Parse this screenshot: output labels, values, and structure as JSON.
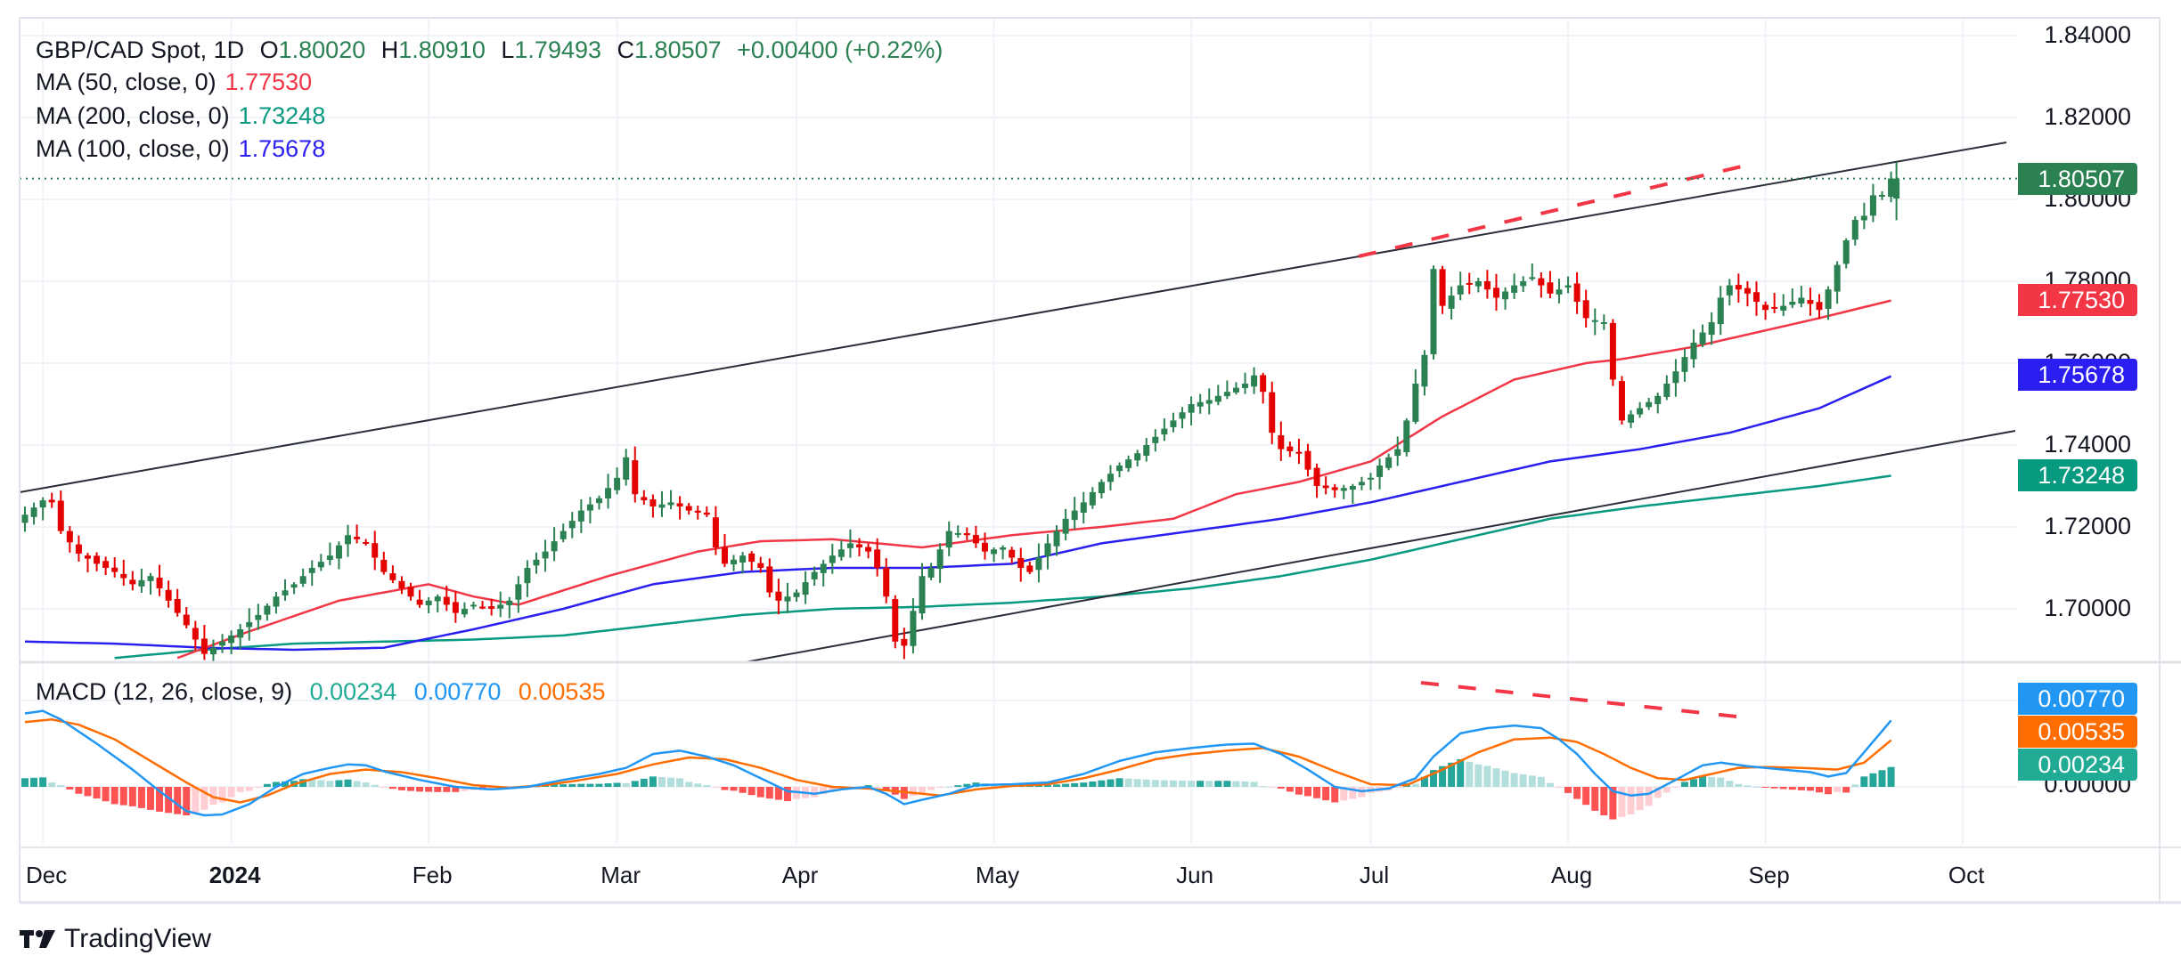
{
  "header": {
    "symbol": "GBP/CAD Spot, 1D",
    "o_label": "O",
    "o_value": "1.80020",
    "h_label": "H",
    "h_value": "1.80910",
    "l_label": "L",
    "l_value": "1.79493",
    "c_label": "C",
    "c_value": "1.80507",
    "change": "+0.00400 (+0.22%)"
  },
  "indicators": [
    {
      "label": "MA (50, close, 0)",
      "value": "1.77530",
      "color": "#f23645"
    },
    {
      "label": "MA (200, close, 0)",
      "value": "1.73248",
      "color": "#089981"
    },
    {
      "label": "MA (100, close, 0)",
      "value": "1.75678",
      "color": "#2a1ff0"
    }
  ],
  "macd_legend": {
    "label": "MACD (12, 26, close, 9)",
    "hist": "0.00234",
    "macd": "0.00770",
    "signal": "0.00535"
  },
  "price_tags": {
    "last": "1.80507",
    "ma50": "1.77530",
    "ma100": "1.75678",
    "ma200": "1.73248",
    "macd": "0.00770",
    "signal": "0.00535",
    "hist": "0.00234"
  },
  "colors": {
    "up": "#2b8152",
    "down": "#e50000",
    "ma50": "#f23645",
    "ma100": "#2a1ff0",
    "ma200": "#089981",
    "macd": "#2196f3",
    "signal": "#ff6d00",
    "hist_up_strong": "#26a69a",
    "hist_up_weak": "#b2dfdb",
    "hist_down_strong": "#ff5252",
    "hist_down_weak": "#ffcdd2",
    "last_tag": "#2b8152",
    "ma50_tag": "#f23645",
    "ma100_tag": "#2a1ff0",
    "ma200_tag": "#089981",
    "macd_tag": "#2196f3",
    "signal_tag": "#ff6d00",
    "hist_tag": "#22ab94"
  },
  "branding": {
    "name": "TradingView"
  },
  "chart_data": {
    "type": "candlestick",
    "title": "GBP/CAD Spot, 1D",
    "price_axis": {
      "ticks": [
        "1.84000",
        "1.82000",
        "1.80000",
        "1.78000",
        "1.76000",
        "1.74000",
        "1.72000",
        "1.70000"
      ],
      "range": [
        1.6885,
        1.8435
      ]
    },
    "macd_axis": {
      "ticks": [
        "0.00000"
      ],
      "range": [
        -0.0075,
        0.0145
      ]
    },
    "x_ticks": [
      {
        "label": "Dec",
        "bold": false,
        "index": 2
      },
      {
        "label": "2024",
        "bold": true,
        "index": 23
      },
      {
        "label": "Feb",
        "bold": false,
        "index": 45
      },
      {
        "label": "Mar",
        "bold": false,
        "index": 66
      },
      {
        "label": "Apr",
        "bold": false,
        "index": 86
      },
      {
        "label": "May",
        "bold": false,
        "index": 108
      },
      {
        "label": "Jun",
        "bold": false,
        "index": 130
      },
      {
        "label": "Jul",
        "bold": false,
        "index": 150
      },
      {
        "label": "Aug",
        "bold": false,
        "index": 172
      },
      {
        "label": "Sep",
        "bold": false,
        "index": 194
      },
      {
        "label": "Oct",
        "bold": false,
        "index": 216
      }
    ],
    "last_index": 208,
    "close_series_keypoints": [
      [
        0,
        1.723
      ],
      [
        2,
        1.7265
      ],
      [
        3,
        1.726
      ],
      [
        4,
        1.719
      ],
      [
        6,
        1.7135
      ],
      [
        8,
        1.711
      ],
      [
        10,
        1.709
      ],
      [
        12,
        1.706
      ],
      [
        14,
        1.708
      ],
      [
        16,
        1.702
      ],
      [
        18,
        1.696
      ],
      [
        20,
        1.689
      ],
      [
        22,
        1.692
      ],
      [
        24,
        1.695
      ],
      [
        26,
        1.6985
      ],
      [
        28,
        1.703
      ],
      [
        30,
        1.706
      ],
      [
        32,
        1.71
      ],
      [
        34,
        1.713
      ],
      [
        36,
        1.718
      ],
      [
        38,
        1.716
      ],
      [
        40,
        1.709
      ],
      [
        42,
        1.705
      ],
      [
        44,
        1.701
      ],
      [
        46,
        1.703
      ],
      [
        48,
        1.699
      ],
      [
        50,
        1.701
      ],
      [
        52,
        1.7
      ],
      [
        54,
        1.702
      ],
      [
        56,
        1.71
      ],
      [
        58,
        1.714
      ],
      [
        60,
        1.719
      ],
      [
        62,
        1.724
      ],
      [
        64,
        1.727
      ],
      [
        66,
        1.732
      ],
      [
        67,
        1.737
      ],
      [
        68,
        1.728
      ],
      [
        70,
        1.725
      ],
      [
        72,
        1.726
      ],
      [
        74,
        1.724
      ],
      [
        76,
        1.723
      ],
      [
        77,
        1.715
      ],
      [
        78,
        1.711
      ],
      [
        80,
        1.713
      ],
      [
        82,
        1.71
      ],
      [
        83,
        1.704
      ],
      [
        84,
        1.702
      ],
      [
        86,
        1.704
      ],
      [
        88,
        1.709
      ],
      [
        90,
        1.713
      ],
      [
        92,
        1.716
      ],
      [
        94,
        1.714
      ],
      [
        95,
        1.71
      ],
      [
        96,
        1.703
      ],
      [
        97,
        1.692
      ],
      [
        98,
        1.691
      ],
      [
        99,
        1.6995
      ],
      [
        100,
        1.708
      ],
      [
        101,
        1.71
      ],
      [
        103,
        1.719
      ],
      [
        105,
        1.718
      ],
      [
        107,
        1.714
      ],
      [
        109,
        1.715
      ],
      [
        111,
        1.71
      ],
      [
        112,
        1.709
      ],
      [
        114,
        1.716
      ],
      [
        116,
        1.722
      ],
      [
        118,
        1.726
      ],
      [
        120,
        1.731
      ],
      [
        122,
        1.735
      ],
      [
        124,
        1.738
      ],
      [
        126,
        1.742
      ],
      [
        128,
        1.746
      ],
      [
        130,
        1.75
      ],
      [
        132,
        1.751
      ],
      [
        134,
        1.753
      ],
      [
        136,
        1.755
      ],
      [
        137,
        1.757
      ],
      [
        138,
        1.753
      ],
      [
        139,
        1.743
      ],
      [
        140,
        1.739
      ],
      [
        142,
        1.738
      ],
      [
        144,
        1.73
      ],
      [
        146,
        1.729
      ],
      [
        148,
        1.73
      ],
      [
        150,
        1.732
      ],
      [
        151,
        1.735
      ],
      [
        153,
        1.739
      ],
      [
        154,
        1.746
      ],
      [
        155,
        1.755
      ],
      [
        156,
        1.762
      ],
      [
        157,
        1.783
      ],
      [
        158,
        1.774
      ],
      [
        160,
        1.779
      ],
      [
        162,
        1.78
      ],
      [
        164,
        1.776
      ],
      [
        166,
        1.779
      ],
      [
        168,
        1.781
      ],
      [
        170,
        1.777
      ],
      [
        172,
        1.779
      ],
      [
        174,
        1.771
      ],
      [
        176,
        1.77
      ],
      [
        177,
        1.756
      ],
      [
        178,
        1.746
      ],
      [
        180,
        1.749
      ],
      [
        182,
        1.752
      ],
      [
        184,
        1.758
      ],
      [
        186,
        1.765
      ],
      [
        188,
        1.77
      ],
      [
        189,
        1.776
      ],
      [
        190,
        1.779
      ],
      [
        192,
        1.777
      ],
      [
        194,
        1.773
      ],
      [
        196,
        1.774
      ],
      [
        198,
        1.776
      ],
      [
        200,
        1.773
      ],
      [
        201,
        1.778
      ],
      [
        202,
        1.784
      ],
      [
        203,
        1.79
      ],
      [
        204,
        1.795
      ],
      [
        205,
        1.796
      ],
      [
        206,
        1.801
      ],
      [
        207,
        1.8011
      ],
      [
        208,
        1.8051
      ]
    ],
    "ma50_keypoints": [
      [
        17,
        1.688
      ],
      [
        25,
        1.6945
      ],
      [
        35,
        1.702
      ],
      [
        45,
        1.706
      ],
      [
        50,
        1.703
      ],
      [
        55,
        1.701
      ],
      [
        65,
        1.708
      ],
      [
        75,
        1.714
      ],
      [
        82,
        1.7165
      ],
      [
        90,
        1.717
      ],
      [
        100,
        1.715
      ],
      [
        110,
        1.718
      ],
      [
        120,
        1.72
      ],
      [
        128,
        1.722
      ],
      [
        135,
        1.728
      ],
      [
        142,
        1.731
      ],
      [
        150,
        1.736
      ],
      [
        158,
        1.747
      ],
      [
        166,
        1.756
      ],
      [
        174,
        1.76
      ],
      [
        178,
        1.761
      ],
      [
        186,
        1.764
      ],
      [
        194,
        1.768
      ],
      [
        200,
        1.771
      ],
      [
        208,
        1.7753
      ]
    ],
    "ma100_keypoints": [
      [
        0,
        1.692
      ],
      [
        10,
        1.6915
      ],
      [
        20,
        1.6905
      ],
      [
        30,
        1.69
      ],
      [
        40,
        1.6905
      ],
      [
        50,
        1.695
      ],
      [
        60,
        1.7
      ],
      [
        70,
        1.706
      ],
      [
        80,
        1.709
      ],
      [
        90,
        1.71
      ],
      [
        100,
        1.71
      ],
      [
        110,
        1.711
      ],
      [
        120,
        1.716
      ],
      [
        130,
        1.719
      ],
      [
        140,
        1.722
      ],
      [
        150,
        1.726
      ],
      [
        160,
        1.731
      ],
      [
        170,
        1.736
      ],
      [
        180,
        1.739
      ],
      [
        190,
        1.743
      ],
      [
        200,
        1.749
      ],
      [
        208,
        1.7568
      ]
    ],
    "ma200_keypoints": [
      [
        10,
        1.688
      ],
      [
        20,
        1.69
      ],
      [
        30,
        1.6915
      ],
      [
        40,
        1.692
      ],
      [
        50,
        1.6925
      ],
      [
        60,
        1.6935
      ],
      [
        70,
        1.696
      ],
      [
        80,
        1.6985
      ],
      [
        90,
        1.7
      ],
      [
        100,
        1.7005
      ],
      [
        110,
        1.7015
      ],
      [
        120,
        1.703
      ],
      [
        130,
        1.705
      ],
      [
        140,
        1.708
      ],
      [
        150,
        1.712
      ],
      [
        160,
        1.717
      ],
      [
        170,
        1.722
      ],
      [
        180,
        1.725
      ],
      [
        190,
        1.7275
      ],
      [
        200,
        1.73
      ],
      [
        208,
        1.7325
      ]
    ],
    "macd_keypoints": [
      [
        0,
        0.0085
      ],
      [
        2,
        0.0088
      ],
      [
        4,
        0.0078
      ],
      [
        8,
        0.005
      ],
      [
        12,
        0.002
      ],
      [
        15,
        -0.0005
      ],
      [
        18,
        -0.0028
      ],
      [
        20,
        -0.0033
      ],
      [
        22,
        -0.0032
      ],
      [
        25,
        -0.002
      ],
      [
        28,
        0.0
      ],
      [
        31,
        0.0015
      ],
      [
        34,
        0.0022
      ],
      [
        36,
        0.0026
      ],
      [
        38,
        0.0025
      ],
      [
        40,
        0.0018
      ],
      [
        44,
        0.0008
      ],
      [
        48,
        0.0
      ],
      [
        52,
        -0.0003
      ],
      [
        56,
        0.0
      ],
      [
        60,
        0.0008
      ],
      [
        64,
        0.0015
      ],
      [
        67,
        0.0022
      ],
      [
        70,
        0.0038
      ],
      [
        73,
        0.0042
      ],
      [
        76,
        0.0035
      ],
      [
        79,
        0.0025
      ],
      [
        82,
        0.001
      ],
      [
        85,
        -0.0005
      ],
      [
        88,
        -0.0008
      ],
      [
        91,
        -0.0003
      ],
      [
        94,
        0.0
      ],
      [
        96,
        -0.0008
      ],
      [
        98,
        -0.002
      ],
      [
        100,
        -0.0015
      ],
      [
        103,
        -0.0008
      ],
      [
        106,
        0.0002
      ],
      [
        110,
        0.0003
      ],
      [
        114,
        0.0005
      ],
      [
        118,
        0.0015
      ],
      [
        122,
        0.003
      ],
      [
        126,
        0.004
      ],
      [
        130,
        0.0045
      ],
      [
        134,
        0.0049
      ],
      [
        137,
        0.005
      ],
      [
        140,
        0.0038
      ],
      [
        143,
        0.002
      ],
      [
        146,
        0.0
      ],
      [
        149,
        -0.0005
      ],
      [
        152,
        -0.0002
      ],
      [
        155,
        0.001
      ],
      [
        157,
        0.0035
      ],
      [
        160,
        0.0062
      ],
      [
        163,
        0.0068
      ],
      [
        166,
        0.0071
      ],
      [
        169,
        0.0068
      ],
      [
        171,
        0.0055
      ],
      [
        173,
        0.0038
      ],
      [
        175,
        0.0015
      ],
      [
        177,
        -0.0005
      ],
      [
        179,
        -0.001
      ],
      [
        181,
        -0.0008
      ],
      [
        184,
        0.0008
      ],
      [
        187,
        0.0025
      ],
      [
        189,
        0.0028
      ],
      [
        192,
        0.0024
      ],
      [
        195,
        0.0021
      ],
      [
        197,
        0.0019
      ],
      [
        199,
        0.0017
      ],
      [
        201,
        0.0012
      ],
      [
        203,
        0.0016
      ],
      [
        205,
        0.004
      ],
      [
        208,
        0.0077
      ]
    ],
    "signal_keypoints": [
      [
        0,
        0.0075
      ],
      [
        3,
        0.0078
      ],
      [
        6,
        0.0072
      ],
      [
        10,
        0.0055
      ],
      [
        14,
        0.003
      ],
      [
        18,
        0.0005
      ],
      [
        21,
        -0.0012
      ],
      [
        24,
        -0.0018
      ],
      [
        27,
        -0.001
      ],
      [
        30,
        0.0003
      ],
      [
        34,
        0.0015
      ],
      [
        38,
        0.002
      ],
      [
        42,
        0.0017
      ],
      [
        46,
        0.001
      ],
      [
        50,
        0.0002
      ],
      [
        54,
        -0.0001
      ],
      [
        58,
        0.0002
      ],
      [
        62,
        0.0008
      ],
      [
        66,
        0.0015
      ],
      [
        70,
        0.0026
      ],
      [
        74,
        0.0034
      ],
      [
        78,
        0.0032
      ],
      [
        82,
        0.0022
      ],
      [
        86,
        0.0008
      ],
      [
        90,
        0.0
      ],
      [
        94,
        -0.0002
      ],
      [
        98,
        -0.0006
      ],
      [
        102,
        -0.001
      ],
      [
        106,
        -0.0003
      ],
      [
        110,
        0.0001
      ],
      [
        114,
        0.0003
      ],
      [
        118,
        0.001
      ],
      [
        122,
        0.002
      ],
      [
        126,
        0.0032
      ],
      [
        130,
        0.0038
      ],
      [
        134,
        0.0042
      ],
      [
        138,
        0.0045
      ],
      [
        142,
        0.0035
      ],
      [
        146,
        0.0018
      ],
      [
        150,
        0.0003
      ],
      [
        154,
        0.0002
      ],
      [
        158,
        0.002
      ],
      [
        162,
        0.004
      ],
      [
        166,
        0.0055
      ],
      [
        170,
        0.0057
      ],
      [
        173,
        0.0052
      ],
      [
        176,
        0.0038
      ],
      [
        179,
        0.0022
      ],
      [
        182,
        0.001
      ],
      [
        185,
        0.0008
      ],
      [
        188,
        0.0015
      ],
      [
        191,
        0.0022
      ],
      [
        194,
        0.0023
      ],
      [
        198,
        0.0022
      ],
      [
        202,
        0.002
      ],
      [
        205,
        0.0028
      ],
      [
        208,
        0.0054
      ]
    ]
  }
}
